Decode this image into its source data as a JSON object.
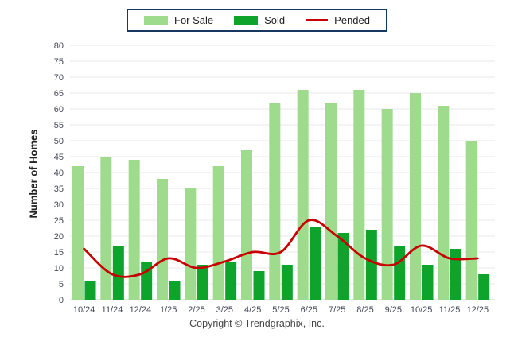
{
  "legend": {
    "border_color": "#17375E"
  },
  "y_axis_title": "Number of Homes",
  "footer": {
    "copyright": "Copyright © Trendgraphix, Inc."
  },
  "colors": {
    "for_sale": "#9EDB8D",
    "sold": "#0EA32B",
    "pended": "#C80000",
    "grid": "#E9E9E9",
    "axis": "#CCCCCC",
    "tick_text": "#44485a"
  },
  "chart_data": {
    "type": "bar",
    "title": "",
    "xlabel": "",
    "ylabel": "Number of Homes",
    "ylim": [
      0,
      80
    ],
    "ytick_step": 5,
    "grid": true,
    "legend_position": "top-center",
    "categories": [
      "10/24",
      "11/24",
      "12/24",
      "1/25",
      "2/25",
      "3/25",
      "4/25",
      "5/25",
      "6/25",
      "7/25",
      "8/25",
      "9/25",
      "10/25",
      "11/25",
      "12/25"
    ],
    "series": [
      {
        "name": "For Sale",
        "type": "bar",
        "color": "#9EDB8D",
        "values": [
          42,
          45,
          44,
          38,
          35,
          42,
          47,
          62,
          66,
          62,
          66,
          60,
          65,
          61,
          50
        ]
      },
      {
        "name": "Sold",
        "type": "bar",
        "color": "#0EA32B",
        "values": [
          6,
          17,
          12,
          6,
          11,
          12,
          9,
          11,
          23,
          21,
          22,
          17,
          11,
          16,
          8
        ]
      },
      {
        "name": "Pended",
        "type": "line",
        "color": "#C80000",
        "values": [
          16,
          8,
          8,
          13,
          10,
          12,
          15,
          15,
          25,
          20,
          13,
          11,
          17,
          13,
          13
        ]
      }
    ]
  }
}
